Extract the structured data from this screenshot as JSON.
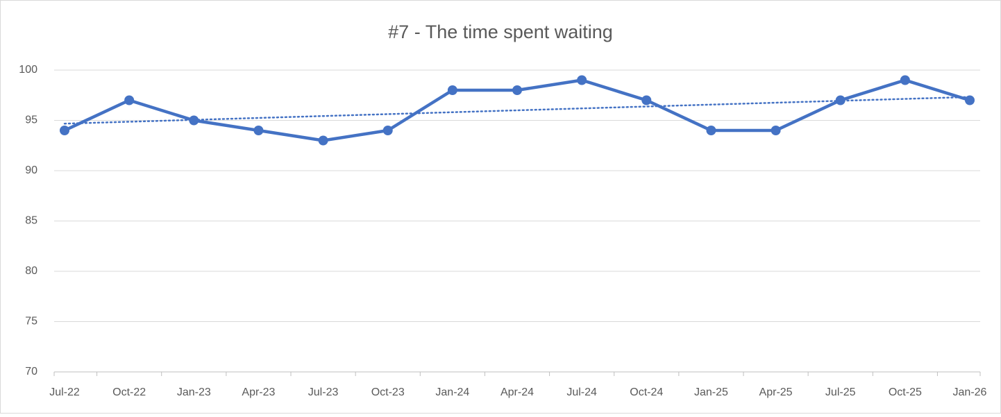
{
  "chart_data": {
    "type": "line",
    "title": "#7 - The time spent waiting",
    "categories": [
      "Jul-22",
      "Oct-22",
      "Jan-23",
      "Apr-23",
      "Jul-23",
      "Oct-23",
      "Jan-24",
      "Apr-24",
      "Jul-24",
      "Oct-24",
      "Jan-25",
      "Apr-25",
      "Jul-25",
      "Oct-25",
      "Jan-26"
    ],
    "series": [
      {
        "color": "#4472c4",
        "values": [
          94,
          97,
          95,
          94,
          93,
          94,
          98,
          98,
          99,
          97,
          94,
          94,
          97,
          99,
          97
        ]
      }
    ],
    "ylim": [
      70,
      100
    ],
    "yticks": [
      70,
      75,
      80,
      85,
      90,
      95,
      100
    ],
    "grid": true,
    "trendline": "linear"
  }
}
